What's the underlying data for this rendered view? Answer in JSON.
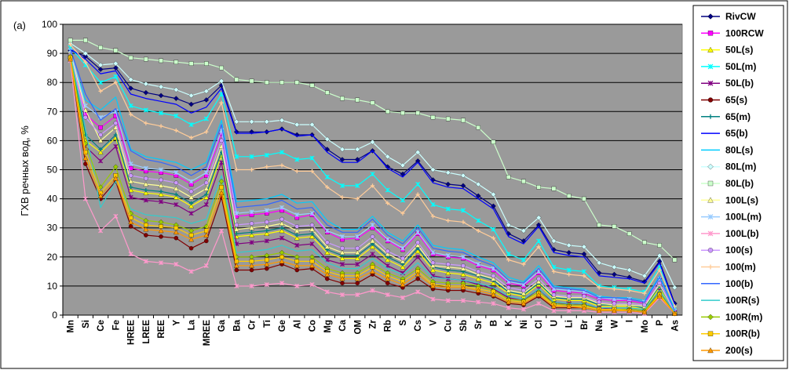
{
  "chart_data": {
    "type": "line",
    "panel_label": "(a)",
    "ylabel": "ГХВ речных вод, %",
    "xlabel": "",
    "ylim": [
      0,
      100
    ],
    "yticks": [
      0,
      10,
      20,
      30,
      40,
      50,
      60,
      70,
      80,
      90,
      100
    ],
    "grid": "horizontal",
    "legend_position": "right",
    "plot_background": "#9a9a9a",
    "categories": [
      "Mn",
      "Si",
      "Ce",
      "Fe",
      "HREE",
      "LREE",
      "REE",
      "Y",
      "La",
      "MREE",
      "Ga",
      "Ba",
      "Cr",
      "Ti",
      "Ge",
      "Al",
      "Co",
      "Mg",
      "Ca",
      "OM",
      "Zr",
      "Rb",
      "S",
      "Cs",
      "V",
      "Cu",
      "Sb",
      "Sr",
      "B",
      "K",
      "Ni",
      "Cl",
      "U",
      "Li",
      "Br",
      "Na",
      "W",
      "I",
      "Mo",
      "P",
      "As"
    ],
    "series": [
      {
        "name": "RivCW",
        "color": "#000080",
        "marker": "diamond",
        "values": [
          91,
          89,
          84.5,
          85,
          78,
          76.5,
          75.5,
          74.5,
          72.5,
          74,
          79,
          63,
          63,
          63,
          64,
          62,
          62,
          57,
          53.5,
          53.5,
          56.5,
          51,
          48.5,
          53,
          46.5,
          45,
          44.5,
          41,
          37.5,
          28,
          25.5,
          31,
          22.5,
          21.5,
          21,
          14.5,
          14,
          13,
          11.5,
          18.5,
          4
        ]
      },
      {
        "name": "100RCW",
        "color": "#ff00ff",
        "marker": "square",
        "values": [
          89,
          69,
          64.5,
          68.5,
          50.5,
          49.5,
          49,
          48,
          45,
          48,
          62.5,
          34,
          34.5,
          35,
          36,
          33.5,
          34.5,
          28.5,
          26,
          26.5,
          30,
          25.5,
          22.5,
          28,
          21,
          20,
          19.5,
          17,
          15.5,
          11,
          10,
          14.5,
          8.5,
          8,
          7.5,
          5.5,
          5,
          5,
          4,
          12.5,
          1.5
        ]
      },
      {
        "name": "50L(s)",
        "color": "#ffff00",
        "marker": "triangle",
        "values": [
          89,
          60,
          56,
          61,
          43,
          42,
          41.5,
          40.5,
          37.5,
          40.5,
          55,
          27,
          27.5,
          28,
          29,
          26.5,
          27,
          21.5,
          19.5,
          19.5,
          23.5,
          19,
          16.5,
          22,
          15.5,
          14.5,
          14,
          12.5,
          11,
          7.5,
          6.5,
          10.5,
          5.5,
          5,
          5,
          3,
          3,
          3,
          2,
          9.5,
          0.5
        ]
      },
      {
        "name": "50L(m)",
        "color": "#00ffff",
        "marker": "asterisk",
        "values": [
          92,
          86,
          80,
          82,
          72,
          70.5,
          69.5,
          68.5,
          65.5,
          67.5,
          76,
          54.5,
          54.5,
          55,
          56,
          53.5,
          54,
          47.5,
          44.5,
          44.5,
          48.5,
          43,
          39.5,
          45,
          38,
          36.5,
          36,
          32.5,
          29.5,
          21,
          19,
          25.5,
          16.5,
          15.5,
          15,
          10,
          9.5,
          9,
          8,
          16.5,
          2.5
        ]
      },
      {
        "name": "50L(b)",
        "color": "#800080",
        "marker": "asterisk",
        "values": [
          88.5,
          58,
          53,
          58,
          40.5,
          39.5,
          39,
          38,
          35,
          38,
          52.5,
          24.5,
          25,
          25.5,
          26.5,
          24,
          24.5,
          19,
          17.5,
          17.5,
          21,
          17,
          14.5,
          20,
          13.5,
          12.5,
          12,
          10.5,
          9,
          6,
          5,
          9,
          4,
          4,
          3.5,
          2.5,
          2,
          2,
          1.5,
          8.5,
          0.5
        ]
      },
      {
        "name": "65(s)",
        "color": "#800000",
        "marker": "circle",
        "values": [
          88,
          52,
          40,
          46,
          30.5,
          27.5,
          27,
          26.5,
          23,
          25.5,
          40.5,
          15.5,
          15.5,
          16,
          17.5,
          15.5,
          16,
          12.5,
          11,
          11,
          14,
          11,
          9.5,
          12.5,
          9,
          8.5,
          8.5,
          7.5,
          6.5,
          4,
          3.5,
          6.5,
          2.5,
          2.5,
          2.5,
          1.5,
          1.5,
          1.5,
          1,
          6,
          0.5
        ]
      },
      {
        "name": "65(m)",
        "color": "#008080",
        "marker": "plus",
        "values": [
          89.5,
          62,
          57,
          62,
          44,
          43,
          42.5,
          41.5,
          38.5,
          41.5,
          56,
          28,
          28.5,
          29,
          30,
          27.5,
          28,
          22.5,
          20.5,
          20.5,
          24.5,
          20,
          17.5,
          23,
          16.5,
          15.5,
          15,
          13.5,
          12,
          8,
          7,
          11,
          6,
          5.5,
          5.5,
          3.5,
          3.5,
          3.5,
          2.5,
          10,
          1
        ]
      },
      {
        "name": "65(b)",
        "color": "#0000ff",
        "marker": "none",
        "values": [
          91.5,
          88,
          83,
          84,
          76,
          74.5,
          73.5,
          72.5,
          69.5,
          71.5,
          78,
          62.5,
          62.5,
          63,
          64,
          61.5,
          62,
          56,
          52.5,
          52.5,
          56.5,
          50.5,
          47.5,
          52.5,
          45.5,
          44,
          43.5,
          40,
          36.5,
          27,
          24.5,
          30.5,
          21.5,
          20.5,
          20,
          13.5,
          13,
          12.5,
          11,
          18,
          3.5
        ]
      },
      {
        "name": "80L(s)",
        "color": "#00ccff",
        "marker": "none",
        "values": [
          90,
          74,
          70.5,
          75,
          57,
          54.5,
          53.5,
          52.5,
          50,
          52.5,
          67,
          39,
          39.5,
          40,
          41.5,
          38.5,
          39,
          32.5,
          29.5,
          29.5,
          34,
          28.5,
          25.5,
          31,
          24,
          23,
          22.5,
          20,
          18,
          13,
          11.5,
          17,
          10,
          9.5,
          9,
          6.5,
          6,
          6,
          5,
          13.5,
          2
        ]
      },
      {
        "name": "80L(m)",
        "color": "#ccffff",
        "marker": "diamond",
        "values": [
          93.5,
          90,
          86,
          86.5,
          81,
          79.5,
          78.5,
          77.5,
          75.5,
          77,
          80.5,
          66.5,
          66.5,
          66.5,
          67,
          65.5,
          65.5,
          60.5,
          57,
          57,
          59.5,
          54.5,
          51.5,
          56,
          50,
          49,
          48,
          45,
          41.5,
          31,
          29,
          33.5,
          25.5,
          24,
          23.5,
          18,
          16.5,
          15.5,
          13.5,
          20.5,
          9.5
        ]
      },
      {
        "name": "80L(b)",
        "color": "#ccffcc",
        "marker": "square",
        "values": [
          94.5,
          94.5,
          92,
          91,
          88.5,
          88,
          87.5,
          87,
          86.5,
          86.5,
          85,
          81,
          80.5,
          80,
          80,
          80,
          79,
          76.5,
          74.5,
          74,
          73,
          70,
          69.5,
          69.5,
          68,
          67.5,
          67,
          64.5,
          59.5,
          47.5,
          46,
          44,
          43.5,
          41,
          40,
          31,
          30.5,
          28,
          25,
          24,
          19
        ]
      },
      {
        "name": "100L(s)",
        "color": "#ffff99",
        "marker": "triangle",
        "values": [
          90.5,
          70.5,
          60,
          64.5,
          46,
          45,
          44.5,
          43.5,
          40.5,
          43.5,
          58,
          29.5,
          30,
          30.5,
          31.5,
          29,
          29.5,
          23.5,
          21.5,
          21.5,
          25.5,
          21,
          18.5,
          24,
          17,
          16.5,
          16,
          14,
          12.5,
          8.5,
          7.5,
          11.5,
          6.5,
          6,
          6,
          4,
          3.5,
          3.5,
          3,
          10.5,
          1
        ]
      },
      {
        "name": "100L(m)",
        "color": "#99ccff",
        "marker": "asterisk",
        "values": [
          91,
          72,
          68,
          70,
          52,
          50.5,
          50,
          49,
          46,
          49,
          63.5,
          35,
          35.5,
          36,
          37,
          34.5,
          35,
          29,
          27,
          27,
          31,
          26,
          23,
          28.5,
          21.5,
          20.5,
          20,
          17.5,
          16,
          11.5,
          10.5,
          15,
          9,
          8.5,
          8,
          6,
          5.5,
          5.5,
          4.5,
          12.5,
          1.5
        ]
      },
      {
        "name": "100L(b)",
        "color": "#ff99cc",
        "marker": "asterisk",
        "values": [
          87.5,
          40,
          29,
          34,
          21,
          18.5,
          18,
          17.5,
          15,
          17,
          29,
          10,
          10,
          10.5,
          11,
          10,
          10.5,
          8,
          7,
          7,
          8.5,
          7,
          6,
          8,
          5.5,
          5,
          5,
          4.5,
          4,
          2.5,
          2,
          4,
          1.5,
          1.5,
          1.5,
          1,
          1,
          1,
          0.5,
          6,
          0.5
        ]
      },
      {
        "name": "100(s)",
        "color": "#cc99ff",
        "marker": "circle",
        "values": [
          89.5,
          68,
          62,
          66,
          48,
          47,
          46.5,
          45.5,
          42.5,
          45.5,
          60,
          31,
          31.5,
          32,
          33,
          30.5,
          31,
          25,
          23,
          23,
          27,
          22,
          19.5,
          25,
          18,
          17.5,
          17,
          15,
          13.5,
          9.5,
          8.5,
          12.5,
          7,
          6.5,
          6.5,
          4.5,
          4,
          4,
          3.5,
          11,
          1
        ]
      },
      {
        "name": "100(m)",
        "color": "#ffcc99",
        "marker": "plus",
        "values": [
          93,
          87,
          77,
          80,
          69,
          66,
          65,
          63.5,
          61,
          63,
          73,
          50,
          50,
          51,
          51.5,
          49.5,
          49.5,
          44,
          40.5,
          40,
          44.5,
          38.5,
          35,
          41.5,
          34,
          32.5,
          32,
          29,
          26.5,
          19,
          17.5,
          23.5,
          15,
          14,
          13.5,
          9.5,
          9,
          8.5,
          7.5,
          15.5,
          3
        ]
      },
      {
        "name": "100(b)",
        "color": "#3366ff",
        "marker": "none",
        "values": [
          91.5,
          76,
          67,
          71,
          56.5,
          53.5,
          52.5,
          51,
          48,
          51,
          65.5,
          37,
          37.5,
          38,
          39.5,
          36.5,
          37,
          31,
          28.5,
          28.5,
          33,
          27.5,
          24.5,
          30,
          23,
          22,
          21.5,
          19,
          17,
          12,
          11,
          16,
          9.5,
          9,
          8.5,
          6,
          6,
          5.5,
          4.5,
          13,
          1.5
        ]
      },
      {
        "name": "100R(s)",
        "color": "#33cccc",
        "marker": "none",
        "values": [
          90,
          64,
          37,
          46,
          36.5,
          34.5,
          34,
          33.5,
          31.5,
          33,
          48,
          21.5,
          22,
          22.5,
          24,
          22,
          22.5,
          18,
          16,
          16,
          19.5,
          16,
          14,
          18,
          13,
          12.5,
          12,
          11,
          9.5,
          6.5,
          5.5,
          9,
          4.5,
          4,
          4,
          2.5,
          2.5,
          2.5,
          2,
          8.5,
          1
        ]
      },
      {
        "name": "100R(m)",
        "color": "#99cc00",
        "marker": "diamond",
        "values": [
          89,
          59,
          44,
          51,
          35,
          32.5,
          32,
          31,
          29,
          30.5,
          46,
          20,
          20,
          20.5,
          21.5,
          20,
          20,
          16,
          14.5,
          14.5,
          17.5,
          14.5,
          12.5,
          16,
          11.5,
          11,
          11,
          10,
          8.5,
          5.5,
          5,
          8,
          4,
          3.5,
          3.5,
          2,
          2,
          2,
          1.5,
          7.5,
          0.5
        ]
      },
      {
        "name": "100R(b)",
        "color": "#ffcc00",
        "marker": "square",
        "values": [
          88.5,
          56,
          42,
          48,
          33.5,
          31,
          30.5,
          30,
          27.5,
          29,
          44,
          18.5,
          18.5,
          19,
          20,
          18.5,
          18.5,
          15,
          13.5,
          13.5,
          16.5,
          13.5,
          11.5,
          15,
          10.5,
          10,
          10,
          9,
          8,
          5,
          4.5,
          7.5,
          3.5,
          3,
          3,
          2,
          2,
          1.5,
          1,
          7,
          0.5
        ]
      },
      {
        "name": "200(s)",
        "color": "#ff9900",
        "marker": "triangle",
        "values": [
          88,
          54,
          41,
          47,
          32,
          29.5,
          29,
          28.5,
          26,
          27.5,
          42,
          17,
          17,
          17.5,
          18.5,
          17,
          17,
          14,
          12.5,
          12.5,
          15,
          12.5,
          10.5,
          14,
          10,
          9.5,
          9.5,
          8.5,
          7,
          4.5,
          4,
          7,
          3,
          3,
          2.5,
          1.5,
          1.5,
          1.5,
          1,
          6.5,
          0.5
        ]
      }
    ]
  }
}
